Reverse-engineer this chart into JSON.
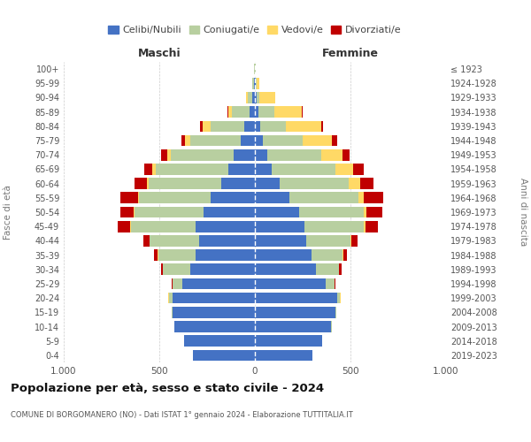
{
  "age_groups": [
    "0-4",
    "5-9",
    "10-14",
    "15-19",
    "20-24",
    "25-29",
    "30-34",
    "35-39",
    "40-44",
    "45-49",
    "50-54",
    "55-59",
    "60-64",
    "65-69",
    "70-74",
    "75-79",
    "80-84",
    "85-89",
    "90-94",
    "95-99",
    "100+"
  ],
  "birth_years": [
    "2019-2023",
    "2014-2018",
    "2009-2013",
    "2004-2008",
    "1999-2003",
    "1994-1998",
    "1989-1993",
    "1984-1988",
    "1979-1983",
    "1974-1978",
    "1969-1973",
    "1964-1968",
    "1959-1963",
    "1954-1958",
    "1949-1953",
    "1944-1948",
    "1939-1943",
    "1934-1938",
    "1929-1933",
    "1924-1928",
    "≤ 1923"
  ],
  "maschi": {
    "celibi": [
      325,
      370,
      420,
      430,
      430,
      380,
      340,
      310,
      290,
      310,
      270,
      230,
      175,
      140,
      110,
      75,
      55,
      30,
      15,
      5,
      2
    ],
    "coniugati": [
      0,
      1,
      2,
      5,
      20,
      50,
      140,
      195,
      260,
      340,
      360,
      375,
      380,
      380,
      330,
      265,
      175,
      90,
      20,
      8,
      1
    ],
    "vedovi": [
      0,
      0,
      0,
      0,
      2,
      2,
      2,
      2,
      2,
      3,
      5,
      5,
      10,
      15,
      20,
      25,
      45,
      20,
      10,
      2,
      0
    ],
    "divorziati": [
      0,
      0,
      0,
      0,
      2,
      5,
      10,
      20,
      30,
      65,
      70,
      95,
      65,
      45,
      30,
      20,
      10,
      5,
      2,
      0,
      0
    ]
  },
  "femmine": {
    "nubili": [
      300,
      350,
      400,
      420,
      430,
      370,
      320,
      295,
      270,
      260,
      230,
      180,
      130,
      90,
      65,
      40,
      30,
      20,
      10,
      5,
      2
    ],
    "coniugate": [
      0,
      0,
      1,
      4,
      15,
      45,
      120,
      165,
      230,
      310,
      340,
      360,
      360,
      330,
      280,
      210,
      130,
      80,
      15,
      5,
      1
    ],
    "vedove": [
      0,
      0,
      0,
      0,
      2,
      2,
      2,
      3,
      5,
      10,
      15,
      30,
      60,
      95,
      115,
      155,
      185,
      145,
      80,
      15,
      1
    ],
    "divorziate": [
      0,
      0,
      0,
      0,
      2,
      5,
      10,
      20,
      30,
      65,
      80,
      100,
      70,
      55,
      35,
      25,
      10,
      5,
      2,
      0,
      0
    ]
  },
  "colors": {
    "celibi": "#4472c4",
    "coniugati": "#b8cfa0",
    "vedovi": "#ffd966",
    "divorziati": "#c00000"
  },
  "title": "Popolazione per età, sesso e stato civile - 2024",
  "subtitle": "COMUNE DI BORGOMANERO (NO) - Dati ISTAT 1° gennaio 2024 - Elaborazione TUTTITALIA.IT",
  "xlabel_maschi": "Maschi",
  "xlabel_femmine": "Femmine",
  "ylabel_left": "Fasce di età",
  "ylabel_right": "Anni di nascita",
  "xlim": 1000,
  "background_color": "#ffffff"
}
